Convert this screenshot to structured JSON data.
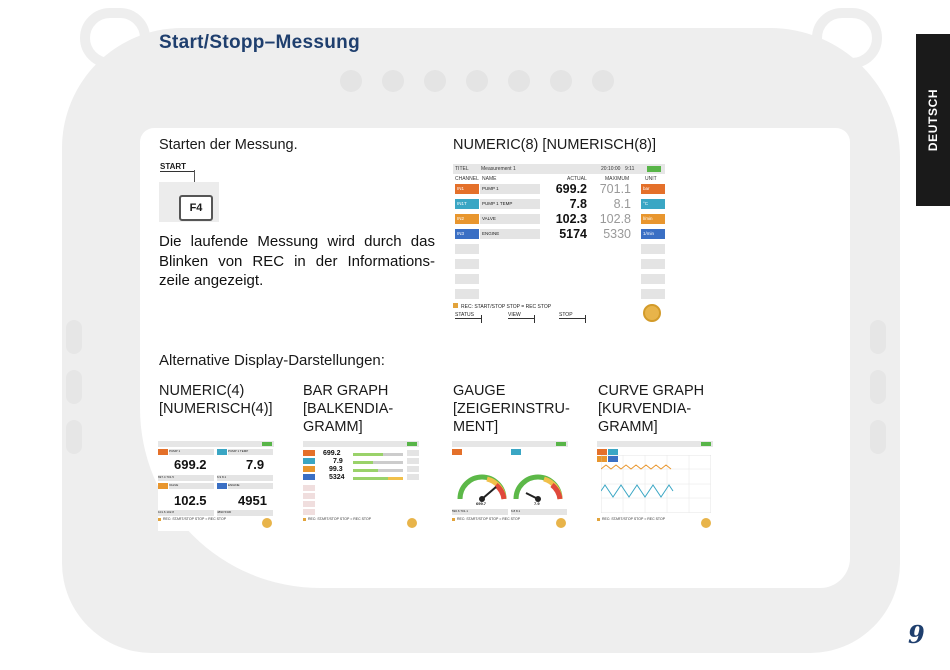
{
  "page": {
    "title": "Start/Stopp–Messung",
    "language_tab": "DEUTSCH",
    "page_number": "9"
  },
  "start_section": {
    "heading": "Starten der Messung.",
    "key_label": "START",
    "key": "F4",
    "paragraph": "Die laufende Messung wird durch das Blinken von REC in der Informations-zeile angezeigt."
  },
  "numeric_screen": {
    "caption": "NUMERIC(8) [NUMERISCH(8)]",
    "title_label": "TITEL",
    "title_value": "Measurement 1",
    "time_1": "20:10:00",
    "time_2": "9:11",
    "headers": {
      "channel": "CHANNEL",
      "name": "NAME",
      "actual": "ACTUAL",
      "maximum": "MAXIMUM",
      "unit": "UNIT"
    },
    "rows": [
      {
        "channel": "IN1",
        "name": "PUMP 1",
        "actual": "699.2",
        "maximum": "701.1",
        "unit": "bar",
        "color": "#e4702a"
      },
      {
        "channel": "IN1T",
        "name": "PUMP 1 TEMP",
        "actual": "7.8",
        "maximum": "8.1",
        "unit": "°C",
        "color": "#3aa6c4"
      },
      {
        "channel": "IN2",
        "name": "VALVE",
        "actual": "102.3",
        "maximum": "102.8",
        "unit": "l/min",
        "color": "#e8962e"
      },
      {
        "channel": "IN3",
        "name": "ENGINE",
        "actual": "5174",
        "maximum": "5330",
        "unit": "1/min",
        "color": "#3a6fc4"
      }
    ],
    "rec_text": "REC: START/STOP  STOP = REC STOP",
    "softkeys": [
      "STATUS",
      "VIEW",
      "STOP"
    ]
  },
  "alternatives": {
    "heading": "Alternative Display-Darstellungen:",
    "items": [
      {
        "caption": "NUMERIC(4)\n[NUMERISCH(4)]"
      },
      {
        "caption": "BAR GRAPH\n[BALKENDIA-\nGRAMM]"
      },
      {
        "caption": "GAUGE\n[ZEIGERINSTRU-\nMENT]"
      },
      {
        "caption": "CURVE GRAPH\n[KURVENDIA-\nGRAMM]"
      }
    ]
  },
  "thumb_numeric4": {
    "values": [
      "699.2",
      "7.9",
      "102.5",
      "4951"
    ],
    "labels": [
      "PUMP 1",
      "PUMP 1 TEMP",
      "VALVE",
      "ENGINE"
    ],
    "small_values": [
      "697.4",
      "701.5",
      "6.9",
      "8.1",
      "101.6",
      "102.8",
      "4890",
      "5330"
    ]
  },
  "thumb_bar": {
    "values": [
      "699.2",
      "7.9",
      "99.3",
      "5324"
    ]
  },
  "thumb_gauge": {
    "values": [
      "699.7",
      "7.9"
    ],
    "footer_values": [
      "590.6",
      "701.1",
      "6.8",
      "8.1"
    ]
  },
  "colors": {
    "title_blue": "#1f3f6e",
    "orange": "#e4702a",
    "teal": "#3aa6c4",
    "amber": "#e8962e",
    "blue": "#3a6fc4",
    "battery_green": "#58b548",
    "rec_yellow": "#e8b44a"
  }
}
